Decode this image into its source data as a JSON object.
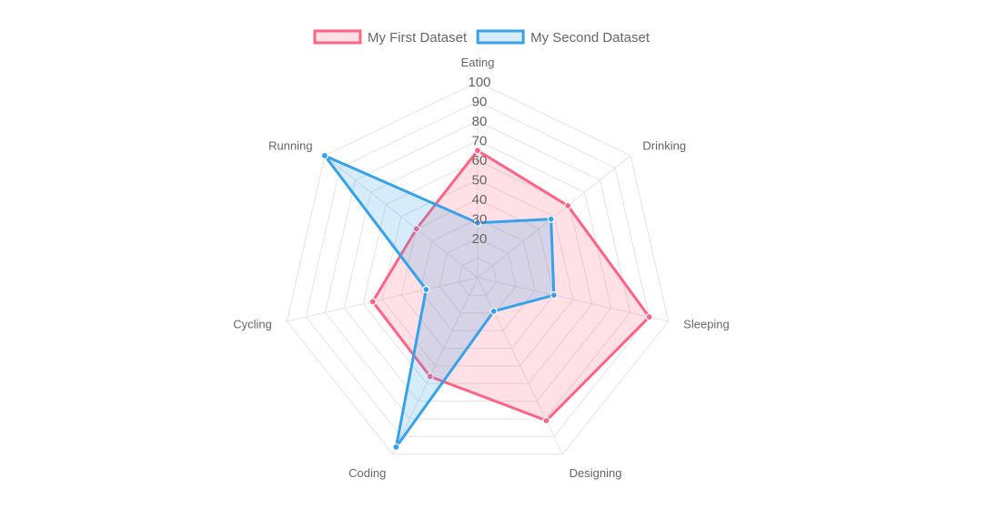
{
  "chart_data": {
    "type": "radar",
    "categories": [
      "Eating",
      "Drinking",
      "Sleeping",
      "Designing",
      "Coding",
      "Cycling",
      "Running"
    ],
    "series": [
      {
        "name": "My First Dataset",
        "values": [
          65,
          59,
          90,
          81,
          56,
          55,
          40
        ],
        "border_color": "#ff6384",
        "fill_color": "rgba(255, 99, 132, 0.2)"
      },
      {
        "name": "My Second Dataset",
        "values": [
          28,
          48,
          40,
          19,
          96,
          27,
          100
        ],
        "border_color": "#36a2eb",
        "fill_color": "rgba(54, 162, 235, 0.2)"
      }
    ],
    "r_range": [
      0,
      100
    ],
    "ticks": [
      "20",
      "30",
      "40",
      "50",
      "60",
      "70",
      "80",
      "90",
      "100"
    ],
    "legend_position": "top",
    "grid": true
  }
}
